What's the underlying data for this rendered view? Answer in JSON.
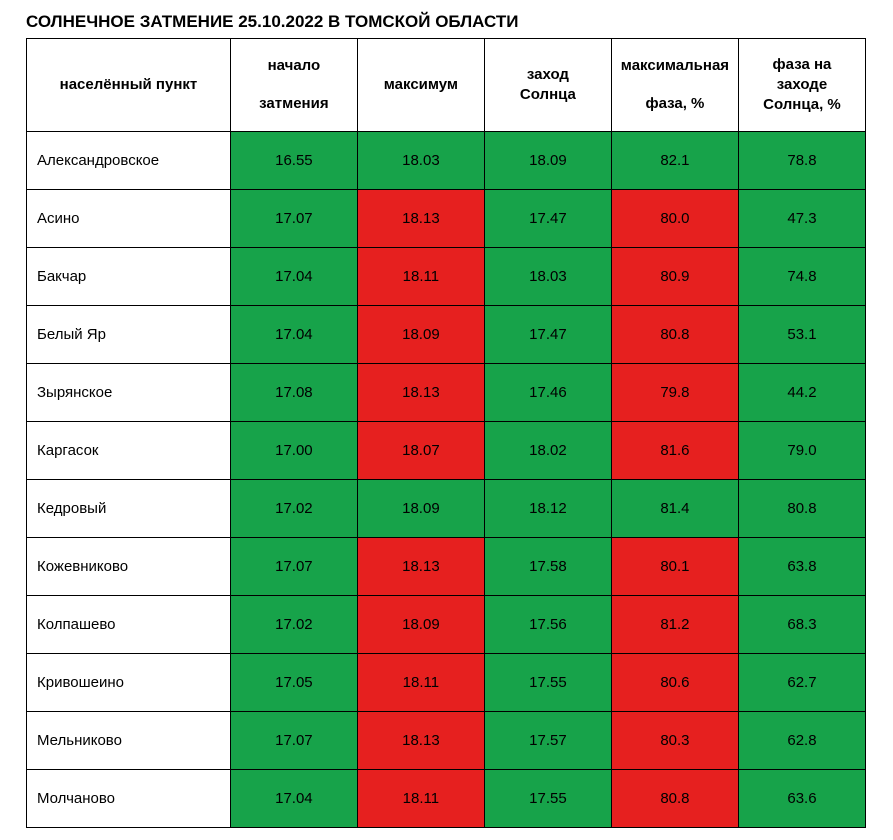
{
  "title": "СОЛНЕЧНОЕ ЗАТМЕНИЕ 25.10.2022 В ТОМСКОЙ ОБЛАСТИ",
  "table": {
    "colors": {
      "green": "#17a34a",
      "red": "#e6201f",
      "white": "#ffffff",
      "border": "#000000",
      "text": "#000000"
    },
    "columns": [
      {
        "key": "locality",
        "label_line1": "населённый пункт",
        "label_line2": ""
      },
      {
        "key": "start",
        "label_line1": "начало",
        "label_line2": "затмения"
      },
      {
        "key": "max",
        "label_line1": "максимум",
        "label_line2": ""
      },
      {
        "key": "sunset",
        "label_line1": "заход",
        "label_line2": "Солнца"
      },
      {
        "key": "max_phase",
        "label_line1": "максимальная",
        "label_line2": "фаза, %"
      },
      {
        "key": "phase_sunset",
        "label_line1": "фаза на",
        "label_line2": "заходе\nСолнца, %"
      }
    ],
    "rows": [
      {
        "locality": "Александровское",
        "start": "16.55",
        "max": "18.03",
        "sunset": "18.09",
        "max_phase": "82.1",
        "phase_sunset": "78.8",
        "colors": [
          "green",
          "green",
          "green",
          "green",
          "green"
        ]
      },
      {
        "locality": "Асино",
        "start": "17.07",
        "max": "18.13",
        "sunset": "17.47",
        "max_phase": "80.0",
        "phase_sunset": "47.3",
        "colors": [
          "green",
          "red",
          "green",
          "red",
          "green"
        ]
      },
      {
        "locality": "Бакчар",
        "start": "17.04",
        "max": "18.11",
        "sunset": "18.03",
        "max_phase": "80.9",
        "phase_sunset": "74.8",
        "colors": [
          "green",
          "red",
          "green",
          "red",
          "green"
        ]
      },
      {
        "locality": "Белый Яр",
        "start": "17.04",
        "max": "18.09",
        "sunset": "17.47",
        "max_phase": "80.8",
        "phase_sunset": "53.1",
        "colors": [
          "green",
          "red",
          "green",
          "red",
          "green"
        ]
      },
      {
        "locality": "Зырянское",
        "start": "17.08",
        "max": "18.13",
        "sunset": "17.46",
        "max_phase": "79.8",
        "phase_sunset": "44.2",
        "colors": [
          "green",
          "red",
          "green",
          "red",
          "green"
        ]
      },
      {
        "locality": "Каргасок",
        "start": "17.00",
        "max": "18.07",
        "sunset": "18.02",
        "max_phase": "81.6",
        "phase_sunset": "79.0",
        "colors": [
          "green",
          "red",
          "green",
          "red",
          "green"
        ]
      },
      {
        "locality": "Кедровый",
        "start": "17.02",
        "max": "18.09",
        "sunset": "18.12",
        "max_phase": "81.4",
        "phase_sunset": "80.8",
        "colors": [
          "green",
          "green",
          "green",
          "green",
          "green"
        ]
      },
      {
        "locality": "Кожевниково",
        "start": "17.07",
        "max": "18.13",
        "sunset": "17.58",
        "max_phase": "80.1",
        "phase_sunset": "63.8",
        "colors": [
          "green",
          "red",
          "green",
          "red",
          "green"
        ]
      },
      {
        "locality": "Колпашево",
        "start": "17.02",
        "max": "18.09",
        "sunset": "17.56",
        "max_phase": "81.2",
        "phase_sunset": "68.3",
        "colors": [
          "green",
          "red",
          "green",
          "red",
          "green"
        ]
      },
      {
        "locality": "Кривошеино",
        "start": "17.05",
        "max": "18.11",
        "sunset": "17.55",
        "max_phase": "80.6",
        "phase_sunset": "62.7",
        "colors": [
          "green",
          "red",
          "green",
          "red",
          "green"
        ]
      },
      {
        "locality": "Мельниково",
        "start": "17.07",
        "max": "18.13",
        "sunset": "17.57",
        "max_phase": "80.3",
        "phase_sunset": "62.8",
        "colors": [
          "green",
          "red",
          "green",
          "red",
          "green"
        ]
      },
      {
        "locality": "Молчаново",
        "start": "17.04",
        "max": "18.11",
        "sunset": "17.55",
        "max_phase": "80.8",
        "phase_sunset": "63.6",
        "colors": [
          "green",
          "red",
          "green",
          "red",
          "green"
        ]
      }
    ]
  }
}
